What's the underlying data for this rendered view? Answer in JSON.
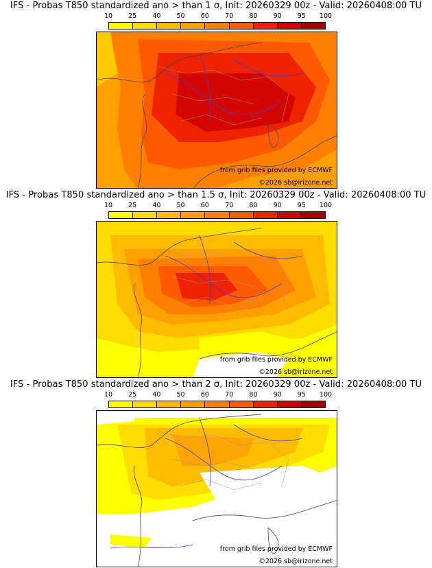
{
  "panels": [
    {
      "title": "IFS - Probas T850  standardized ano > than 1 σ, Init: 20260329 00z - Valid: 20260408:00 TU"
    },
    {
      "title": "IFS - Probas T850  standardized ano > than 1.5 σ, Init: 20260329 00z - Valid: 20260408:00 TU"
    },
    {
      "title": "IFS - Probas T850  standardized ano > than 2 σ, Init: 20260329 00z - Valid: 20260408:00 TU"
    }
  ],
  "colorbar": {
    "ticks": [
      "10",
      "25",
      "40",
      "50",
      "60",
      "70",
      "80",
      "90",
      "95",
      "100"
    ],
    "colors": [
      "#ffff00",
      "#ffdd00",
      "#ffbb00",
      "#ff9f00",
      "#ff8000",
      "#ff5a00",
      "#ee2200",
      "#cc0000",
      "#a00000",
      "#6e0000"
    ]
  },
  "credits": {
    "source": "from grib files provided by ECMWF",
    "copyright": "©2026 sb@irizone.net"
  }
}
